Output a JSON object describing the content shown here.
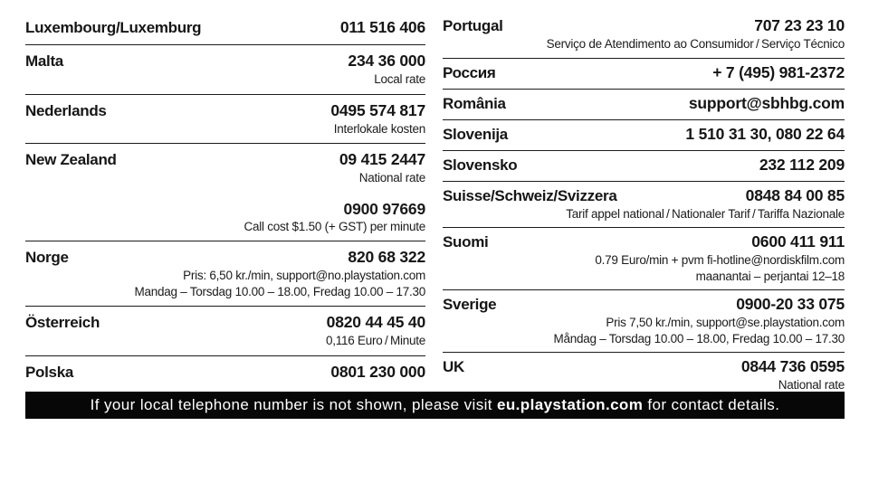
{
  "page": {
    "background": "#ffffff",
    "text_color": "#161616",
    "rule_color": "#1c1c1c",
    "bar_background": "#070707",
    "bar_text_color": "#ffffff"
  },
  "columns": [
    {
      "entries": [
        {
          "name": "Luxembourg/Luxemburg",
          "value": "011 516 406",
          "lines": []
        },
        {
          "name": "Malta",
          "value": "234 36 000",
          "lines": [
            {
              "text": "Local rate",
              "bold": false
            }
          ]
        },
        {
          "name": "Nederlands",
          "value": "0495 574 817",
          "lines": [
            {
              "text": "Interlokale kosten",
              "bold": false
            }
          ]
        },
        {
          "name": "New Zealand",
          "value": "09 415 2447",
          "lines": [
            {
              "text": "National rate",
              "bold": false
            },
            {
              "text": "0900 97669",
              "bold": true,
              "gap": true
            },
            {
              "text": "Call cost $1.50 (+ GST) per minute",
              "bold": false
            }
          ]
        },
        {
          "name": "Norge",
          "value": "820 68 322",
          "lines": [
            {
              "text": "Pris: 6,50 kr./min, support@no.playstation.com",
              "bold": false
            },
            {
              "text": "Mandag – Torsdag 10.00 – 18.00, Fredag 10.00 – 17.30",
              "bold": false
            }
          ]
        },
        {
          "name": "Österreich",
          "value": "0820 44 45 40",
          "lines": [
            {
              "text": "0,116 Euro / Minute",
              "bold": false
            }
          ]
        },
        {
          "name": "Polska",
          "value": "0801 230 000",
          "lines": []
        }
      ]
    },
    {
      "entries": [
        {
          "name": "Portugal",
          "value": "707 23 23 10",
          "lines": [
            {
              "text": "Serviço de Atendimento ao Consumidor / Serviço Técnico",
              "bold": false
            }
          ]
        },
        {
          "name": "Россия",
          "value": "+ 7 (495) 981-2372",
          "lines": []
        },
        {
          "name": "România",
          "value": "support@sbhbg.com",
          "lines": []
        },
        {
          "name": "Slovenija",
          "value": "1 510 31 30, 080 22 64",
          "lines": []
        },
        {
          "name": "Slovensko",
          "value": "232 112 209",
          "lines": []
        },
        {
          "name": "Suisse/Schweiz/Svizzera",
          "value": "0848 84 00 85",
          "lines": [
            {
              "text": "Tarif appel national / Nationaler Tarif / Tariffa Nazionale",
              "bold": false
            }
          ]
        },
        {
          "name": "Suomi",
          "value": "0600 411 911",
          "lines": [
            {
              "text": "0.79 Euro/min + pvm fi-hotline@nordiskfilm.com",
              "bold": false
            },
            {
              "text": "maanantai – perjantai 12–18",
              "bold": false
            }
          ]
        },
        {
          "name": "Sverige",
          "value": "0900-20 33 075",
          "lines": [
            {
              "text": "Pris 7,50 kr./min, support@se.playstation.com",
              "bold": false
            },
            {
              "text": "Måndag – Torsdag 10.00 – 18.00, Fredag 10.00 – 17.30",
              "bold": false
            }
          ]
        },
        {
          "name": "UK",
          "value": "0844 736 0595",
          "lines": [
            {
              "text": "National rate",
              "bold": false
            }
          ]
        }
      ]
    }
  ],
  "footer": {
    "prefix": "If your local telephone number is not shown, please visit ",
    "link": "eu.playstation.com",
    "suffix": " for contact details."
  }
}
